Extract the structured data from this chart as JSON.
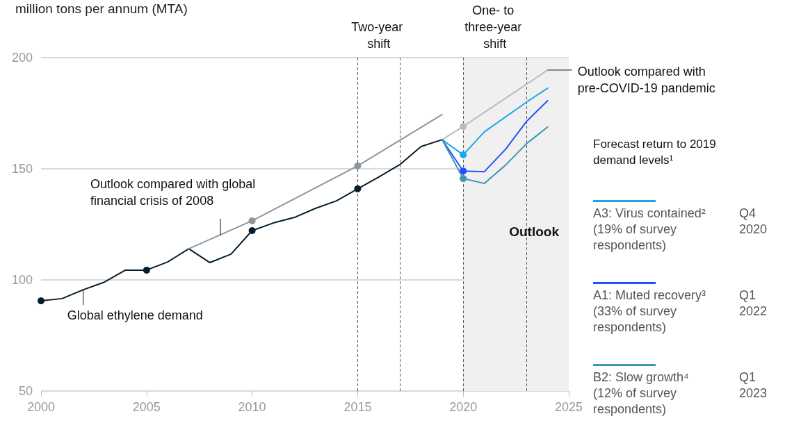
{
  "chart_data": {
    "type": "line",
    "ylabel": "million tons per annum (MTA)",
    "legend_title": "Forecast return to 2019 demand levels¹",
    "xlim": [
      2000,
      2025
    ],
    "xticks": [
      2000,
      2005,
      2010,
      2015,
      2020,
      2025
    ],
    "ylim": [
      50,
      200
    ],
    "yticks": [
      50,
      100,
      150,
      200
    ],
    "grid": "y",
    "legend": "right",
    "line_style": "solid",
    "series": [
      {
        "color": "#051c2c",
        "x": [
          2000,
          2001,
          2002,
          2003,
          2004,
          2005,
          2006,
          2007,
          2008,
          2009,
          2010,
          2011,
          2012,
          2013,
          2014,
          2015,
          2016,
          2017,
          2018,
          2019
        ],
        "values": [
          90.6,
          91.6,
          95.6,
          99,
          104.4,
          104.4,
          108.1,
          114,
          107.8,
          111.6,
          122.2,
          125.6,
          128.1,
          132.2,
          135.6,
          141,
          146.3,
          151.9,
          160,
          163.1
        ]
      },
      {
        "color": "#8c969e",
        "x": [
          2007,
          2010,
          2015,
          2019
        ],
        "values": [
          114,
          126.6,
          151.3,
          174.4
        ]
      },
      {
        "color": "#b8bcc0",
        "x": [
          2019,
          2020,
          2024
        ],
        "values": [
          163.1,
          169,
          194.4
        ]
      },
      {
        "name": "A3: Virus contained² (19% of survey respondents)",
        "color": "#1ea7e8",
        "x": [
          2019,
          2020,
          2021,
          2023,
          2024
        ],
        "values": [
          163.1,
          156.3,
          166.6,
          180,
          186.3
        ]
      },
      {
        "name": "A1: Muted recovery³ (33% of survey respondents)",
        "color": "#2251ff",
        "x": [
          2019,
          2020,
          2021,
          2022,
          2023,
          2024
        ],
        "values": [
          163.1,
          149,
          148.7,
          158.7,
          171.3,
          180.6
        ]
      },
      {
        "name": "B2: Slow growth⁴ (12% of survey respondents)",
        "color": "#3c96b4",
        "x": [
          2019,
          2020,
          2021,
          2022,
          2023,
          2024
        ],
        "values": [
          163.1,
          145.6,
          143.4,
          151.6,
          161.3,
          168.8
        ]
      },
      {
        "type": "scatter",
        "marker": "circle",
        "color": "#051c2c",
        "x": [
          2000,
          2005,
          2010,
          2015
        ],
        "values": [
          90.6,
          104.4,
          122.2,
          141
        ]
      },
      {
        "type": "scatter",
        "marker": "circle",
        "color": "#8c969e",
        "x": [
          2010,
          2015
        ],
        "values": [
          126.6,
          151.3
        ]
      },
      {
        "type": "scatter",
        "marker": "circle",
        "color": "#b8bcc0",
        "x": [
          2020
        ],
        "values": [
          169
        ]
      },
      {
        "type": "scatter",
        "marker": "circle",
        "color": "#1ea7e8",
        "x": [
          2020
        ],
        "values": [
          156.3
        ]
      },
      {
        "type": "scatter",
        "marker": "circle",
        "color": "#2251ff",
        "x": [
          2020
        ],
        "values": [
          149
        ]
      },
      {
        "type": "scatter",
        "marker": "circle",
        "color": "#3c96b4",
        "x": [
          2020
        ],
        "values": [
          145.6
        ]
      }
    ],
    "ref_lines": [
      {
        "axis": "x",
        "value": 2015,
        "color": "#555555",
        "line_style": "dashed"
      },
      {
        "axis": "x",
        "value": 2017,
        "color": "#555555",
        "line_style": "dashed"
      },
      {
        "axis": "x",
        "value": 2020,
        "color": "#555555",
        "line_style": "dashed"
      },
      {
        "axis": "x",
        "value": 2023,
        "color": "#555555",
        "line_style": "dashed"
      }
    ],
    "bands": [
      {
        "axis": "x",
        "from": 2020,
        "to": 2025,
        "label": "Outlook",
        "color": "#f0f0f0"
      }
    ],
    "annotations": [
      {
        "text": "Global ethylene demand",
        "x": 2002,
        "y": 95.6
      },
      {
        "text": "Outlook compared with global financial crisis of 2008",
        "x": 2008.5,
        "y": 120
      },
      {
        "text": "Outlook compared with pre-COVID-19 pandemic",
        "x": 2024,
        "y": 194.4
      },
      "Two-year shift",
      "One- to three-year shift",
      "Q4 2020",
      "Q1 2022",
      "Q1 2023"
    ]
  }
}
